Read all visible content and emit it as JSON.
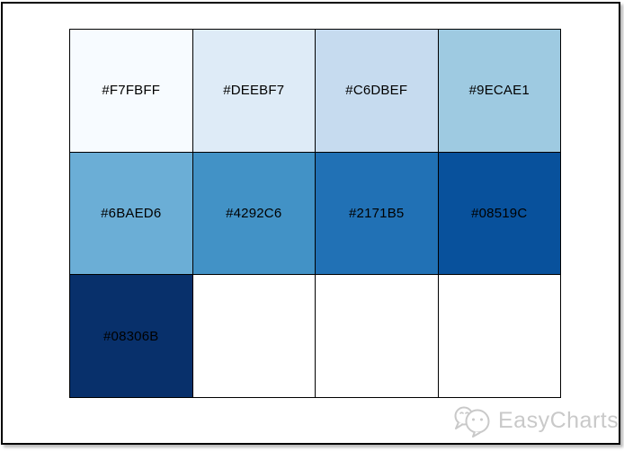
{
  "frame": {
    "border_color": "#000000",
    "background": "#ffffff"
  },
  "palette_grid": {
    "rows": 3,
    "cols": 4,
    "line_color": "#000000",
    "label_color": "#000000",
    "cells": [
      {
        "label": "#F7FBFF",
        "color": "#F7FBFF"
      },
      {
        "label": "#DEEBF7",
        "color": "#DEEBF7"
      },
      {
        "label": "#C6DBEF",
        "color": "#C6DBEF"
      },
      {
        "label": "#9ECAE1",
        "color": "#9ECAE1"
      },
      {
        "label": "#6BAED6",
        "color": "#6BAED6"
      },
      {
        "label": "#4292C6",
        "color": "#4292C6"
      },
      {
        "label": "#2171B5",
        "color": "#2171B5"
      },
      {
        "label": "#08519C",
        "color": "#08519C"
      },
      {
        "label": "#08306B",
        "color": "#08306B"
      },
      {
        "label": "",
        "color": "#FFFFFF"
      },
      {
        "label": "",
        "color": "#FFFFFF"
      },
      {
        "label": "",
        "color": "#FFFFFF"
      }
    ]
  },
  "watermark": {
    "brand": "EasyCharts",
    "icon": "wechat-chat-bubbles",
    "color": "#c9c9c9"
  },
  "chart_data": {
    "type": "heatmap",
    "title": "",
    "rows": [
      [
        "#F7FBFF",
        "#DEEBF7",
        "#C6DBEF",
        "#9ECAE1"
      ],
      [
        "#6BAED6",
        "#4292C6",
        "#2171B5",
        "#08519C"
      ],
      [
        "#08306B",
        "",
        "",
        ""
      ]
    ],
    "cell_labels_shown": true,
    "grid": "on",
    "legend": "none"
  }
}
